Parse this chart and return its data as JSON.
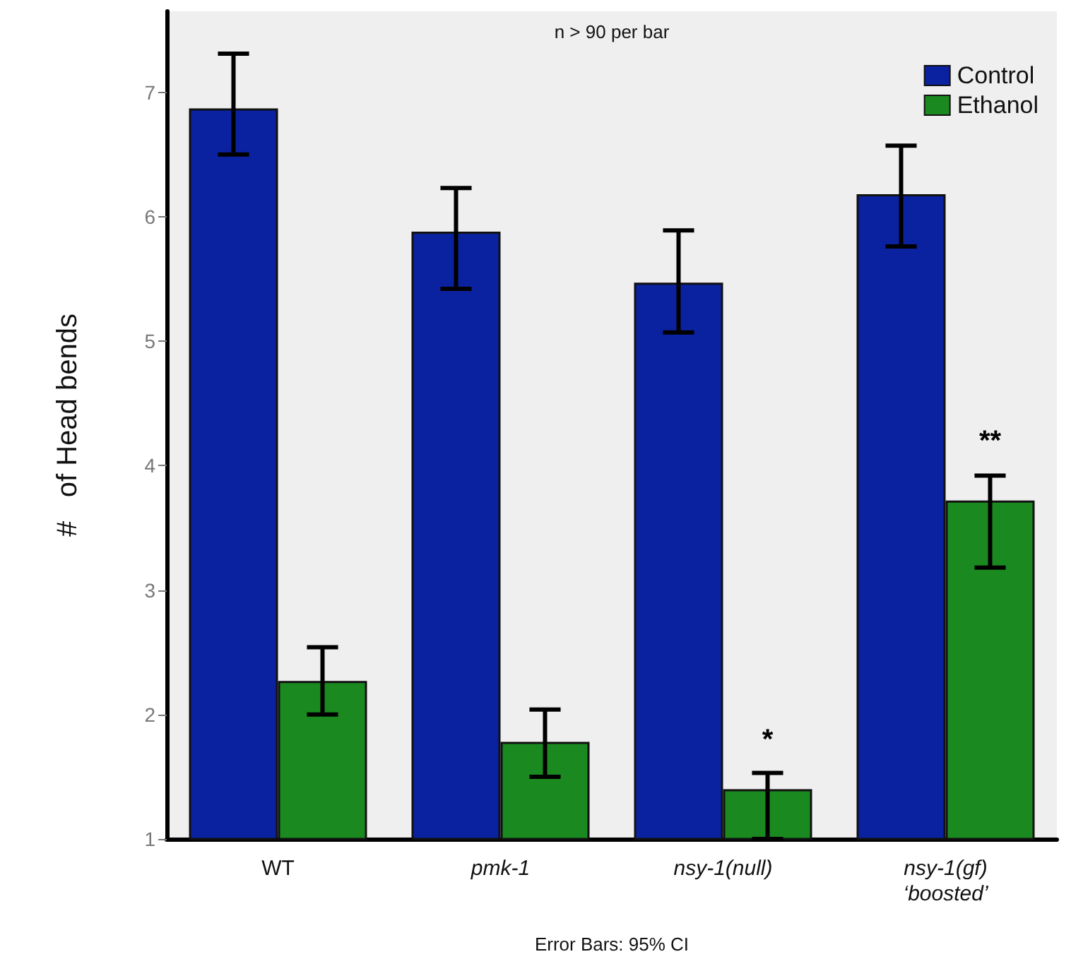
{
  "chart_data": {
    "type": "bar",
    "ylabel": "#   of Head bends",
    "categories": [
      "WT",
      "pmk-1",
      "nsy-1(null)",
      "nsy-1(gf)\n‘boosted’"
    ],
    "series": [
      {
        "name": "Control",
        "color": "#0a22a0",
        "values": [
          6.87,
          5.88,
          5.47,
          6.18
        ],
        "errors": [
          [
            6.5,
            7.31
          ],
          [
            5.42,
            6.23
          ],
          [
            5.07,
            5.89
          ],
          [
            5.76,
            6.57
          ]
        ]
      },
      {
        "name": "Ethanol",
        "color": "#1a8a20",
        "values": [
          2.27,
          1.78,
          1.4,
          3.72
        ],
        "errors": [
          [
            2.0,
            2.54
          ],
          [
            1.5,
            2.04
          ],
          [
            1.0,
            1.53
          ],
          [
            3.18,
            3.92
          ]
        ]
      }
    ],
    "ylim": [
      1,
      7.65
    ],
    "yticks": [
      1,
      2,
      3,
      4,
      5,
      6,
      7
    ],
    "grid": false,
    "legend": "top right",
    "annotations": [
      "n > 90 per bar",
      "Error Bars: 95% CI",
      {
        "text": "*",
        "x": "nsy-1(null)",
        "y": 1.68
      },
      {
        "text": "**",
        "x": "nsy-1(gf)\n‘boosted’",
        "y": 4.08
      }
    ]
  }
}
